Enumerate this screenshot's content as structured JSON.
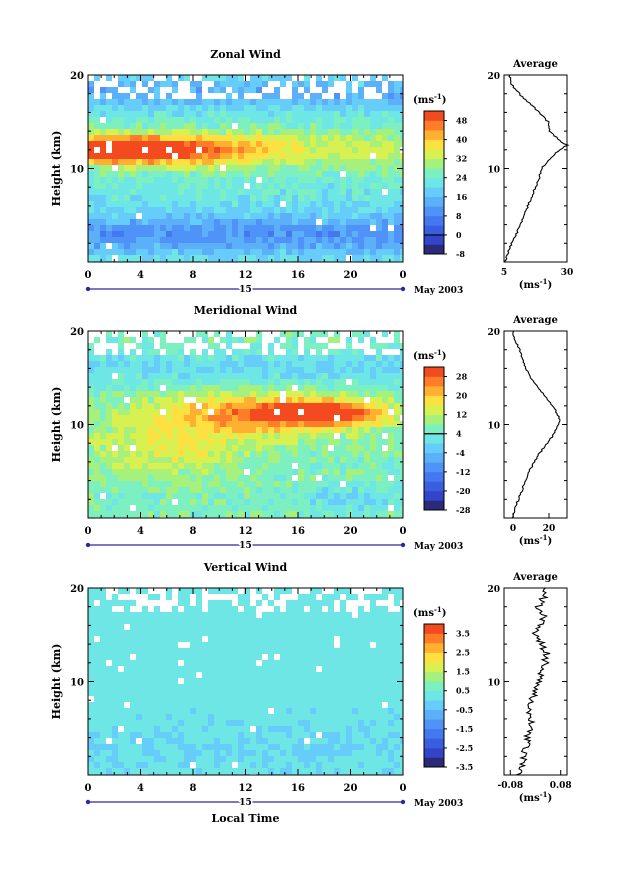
{
  "chart_data": [
    {
      "type": "heatmap",
      "title": "Zonal Wind",
      "ylabel": "Height (km)",
      "ylim": [
        0,
        20
      ],
      "yticks": [
        "20",
        "10"
      ],
      "xlim": [
        0,
        24
      ],
      "xticks": [
        "0",
        "4",
        "8",
        "12",
        "16",
        "20",
        "0"
      ],
      "date_label": "15",
      "date_suffix": "May 2003",
      "colorbar": {
        "unit": "(ms",
        "unit_exp": "-1",
        "unit_close": ")",
        "labels": [
          "48",
          "40",
          "32",
          "24",
          "16",
          "8",
          "0",
          "-8"
        ],
        "levels": [
          "-8",
          "-4",
          "0",
          "4",
          "8",
          "12",
          "16",
          "20",
          "24",
          "28",
          "32",
          "36",
          "40",
          "44",
          "48",
          "52"
        ],
        "colors": [
          "#2a2a78",
          "#3344c8",
          "#3a5ee0",
          "#4478f0",
          "#4f92f8",
          "#5cb0fa",
          "#66ccfa",
          "#6ee6e6",
          "#7cf0c0",
          "#a6f07c",
          "#d8f050",
          "#ffe040",
          "#ffb030",
          "#ff7c28",
          "#f44a20"
        ],
        "zero_index": 2
      },
      "average": {
        "title": "Average",
        "xticks": [
          "5",
          "30"
        ],
        "xlim": [
          5,
          30
        ],
        "xunit": "(ms",
        "xunit_exp": "-1",
        "xunit_close": ")",
        "heights": [
          0,
          1,
          2,
          3,
          4,
          5,
          6,
          7,
          8,
          9,
          10,
          11,
          12,
          12.5,
          13,
          14,
          15,
          16,
          17,
          18,
          19,
          20
        ],
        "values": [
          5.5,
          6.5,
          8,
          10,
          11.5,
          13,
          14.5,
          16,
          17.5,
          19,
          20,
          23,
          27,
          30,
          27,
          23,
          22.5,
          19,
          15,
          11,
          8,
          7
        ]
      }
    },
    {
      "type": "heatmap",
      "title": "Meridional Wind",
      "ylabel": "Height (km)",
      "ylim": [
        0,
        20
      ],
      "yticks": [
        "20",
        "10"
      ],
      "xlim": [
        0,
        24
      ],
      "xticks": [
        "0",
        "4",
        "8",
        "12",
        "16",
        "20",
        "0"
      ],
      "date_label": "15",
      "date_suffix": "May 2003",
      "colorbar": {
        "unit": "(ms",
        "unit_exp": "-1",
        "unit_close": ")",
        "labels": [
          "28",
          "20",
          "12",
          "4",
          "-4",
          "-12",
          "-20",
          "-28"
        ],
        "levels": [
          "-28",
          "-24",
          "-20",
          "-16",
          "-12",
          "-8",
          "-4",
          "0",
          "4",
          "8",
          "12",
          "16",
          "20",
          "24",
          "28",
          "32"
        ],
        "colors": [
          "#2a2a78",
          "#3344c8",
          "#3a5ee0",
          "#4478f0",
          "#4f92f8",
          "#5cb0fa",
          "#66ccfa",
          "#6ee6e6",
          "#7cf0c0",
          "#a6f07c",
          "#d8f050",
          "#ffe040",
          "#ffb030",
          "#ff7c28",
          "#f44a20"
        ],
        "zero_index": 8
      },
      "average": {
        "title": "Average",
        "xticks": [
          "0",
          "20"
        ],
        "xlim": [
          -5,
          30
        ],
        "xunit": "(ms",
        "xunit_exp": "-1",
        "xunit_close": ")",
        "heights": [
          0,
          1,
          2,
          3,
          4,
          5,
          6,
          7,
          8,
          9,
          10,
          10.5,
          11,
          12,
          13,
          14,
          15,
          16,
          17,
          18,
          19,
          20
        ],
        "values": [
          0,
          1,
          3,
          5,
          7,
          9,
          12,
          15,
          19,
          23,
          25,
          26,
          25,
          22,
          18,
          14,
          10,
          7,
          5,
          4,
          1,
          0
        ]
      }
    },
    {
      "type": "heatmap",
      "title": "Vertical Wind",
      "ylabel": "Height (km)",
      "xlabel": "Local Time",
      "ylim": [
        0,
        20
      ],
      "yticks": [
        "20",
        "10"
      ],
      "xlim": [
        0,
        24
      ],
      "xticks": [
        "0",
        "4",
        "8",
        "12",
        "16",
        "20",
        "0"
      ],
      "date_label": "15",
      "date_suffix": "May 2003",
      "colorbar": {
        "unit": "(ms",
        "unit_exp": "-1",
        "unit_close": ")",
        "labels": [
          "3.5",
          "2.5",
          "1.5",
          "0.5",
          "-0.5",
          "-1.5",
          "-2.5",
          "-3.5"
        ],
        "levels": [
          "-3.5",
          "-3",
          "-2.5",
          "-2",
          "-1.5",
          "-1",
          "-0.5",
          "0",
          "0.5",
          "1",
          "1.5",
          "2",
          "2.5",
          "3",
          "3.5",
          "4"
        ],
        "colors": [
          "#2a2a78",
          "#3344c8",
          "#3a5ee0",
          "#4478f0",
          "#4f92f8",
          "#5cb0fa",
          "#66ccfa",
          "#6ee6e6",
          "#7cf0c0",
          "#a6f07c",
          "#d8f050",
          "#ffe040",
          "#ffb030",
          "#ff7c28",
          "#f44a20"
        ],
        "zero_index": -1
      },
      "average": {
        "title": "Average",
        "xticks": [
          "-0.08",
          "0.08"
        ],
        "xlim": [
          -0.1,
          0.1
        ],
        "xunit": "(ms",
        "xunit_exp": "-1",
        "xunit_close": ")",
        "heights": [
          0,
          1,
          2,
          3,
          4,
          5,
          6,
          7,
          8,
          9,
          10,
          11,
          12,
          13,
          14,
          15,
          16,
          17,
          18,
          19,
          20
        ],
        "values": [
          -0.05,
          -0.045,
          -0.035,
          -0.03,
          -0.025,
          -0.02,
          -0.015,
          -0.02,
          -0.01,
          0.0,
          0.01,
          0.02,
          0.03,
          0.035,
          0.02,
          0.0,
          0.015,
          0.03,
          0.01,
          0.025,
          0.03
        ]
      }
    }
  ]
}
